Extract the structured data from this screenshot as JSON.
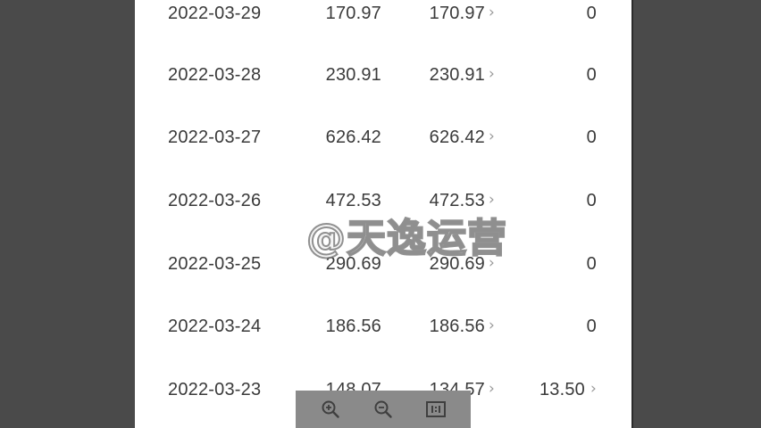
{
  "rows": [
    {
      "date": "2022-03-29",
      "value1": "170.97",
      "value2": "170.97",
      "value3": "0",
      "value3_link": false
    },
    {
      "date": "2022-03-28",
      "value1": "230.91",
      "value2": "230.91",
      "value3": "0",
      "value3_link": false
    },
    {
      "date": "2022-03-27",
      "value1": "626.42",
      "value2": "626.42",
      "value3": "0",
      "value3_link": false
    },
    {
      "date": "2022-03-26",
      "value1": "472.53",
      "value2": "472.53",
      "value3": "0",
      "value3_link": false
    },
    {
      "date": "2022-03-25",
      "value1": "290.69",
      "value2": "290.69",
      "value3": "0",
      "value3_link": false
    },
    {
      "date": "2022-03-24",
      "value1": "186.56",
      "value2": "186.56",
      "value3": "0",
      "value3_link": false
    },
    {
      "date": "2022-03-23",
      "value1": "148.07",
      "value2": "134.57",
      "value3": "13.50",
      "value3_link": true
    }
  ],
  "chevron_glyph": "›",
  "watermark": "@天逸运营",
  "toolbar": {
    "zoom_in_icon": "zoom-in-icon",
    "zoom_out_icon": "zoom-out-icon",
    "actual_size_icon": "actual-size-icon",
    "actual_size_label": "1:1"
  },
  "colors": {
    "background": "#4a4a4a",
    "page": "#ffffff",
    "text": "#3a3a3a",
    "chevron": "#9a9a9a",
    "toolbar": "#8a8a8a"
  }
}
